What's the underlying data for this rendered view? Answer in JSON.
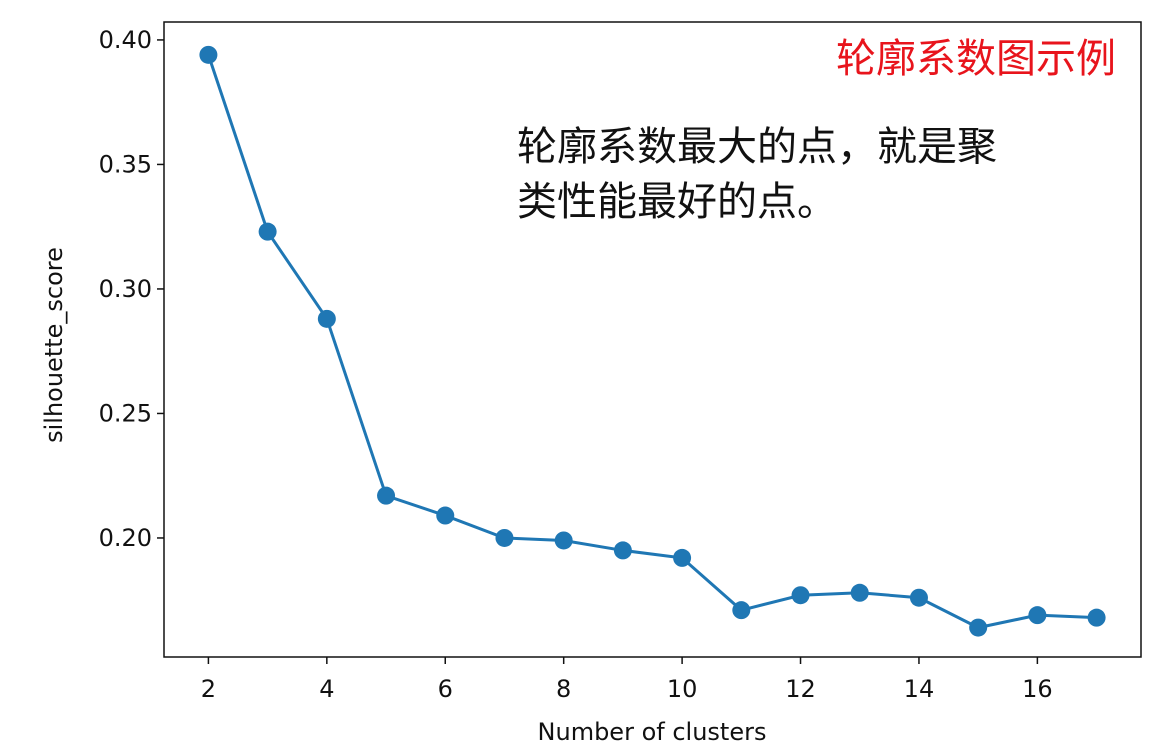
{
  "chart_data": {
    "type": "line",
    "title": "轮廓系数图示例",
    "annotation": [
      "轮廓系数最大的点，就是聚",
      "类性能最好的点。"
    ],
    "x_label": "Number of clusters",
    "y_label": "silhouette_score",
    "x": [
      2,
      3,
      4,
      5,
      6,
      7,
      8,
      9,
      10,
      11,
      12,
      13,
      14,
      15,
      16,
      17
    ],
    "series": [
      {
        "color": "#1f77b4",
        "values": [
          0.394,
          0.323,
          0.288,
          0.217,
          0.209,
          0.2,
          0.199,
          0.195,
          0.192,
          0.171,
          0.177,
          0.178,
          0.176,
          0.164,
          0.169,
          0.168
        ]
      }
    ],
    "xlim": [
      1.25,
      17.75
    ],
    "ylim": [
      0.1522,
      0.4072
    ],
    "xticks": [
      2,
      4,
      6,
      8,
      10,
      12,
      14,
      16
    ],
    "yticks": [
      {
        "value": 0.2,
        "label": "0.20"
      },
      {
        "value": 0.25,
        "label": "0.25"
      },
      {
        "value": 0.3,
        "label": "0.30"
      },
      {
        "value": 0.35,
        "label": "0.35"
      },
      {
        "value": 0.4,
        "label": "0.40"
      }
    ],
    "title_color": "#e8141c"
  }
}
